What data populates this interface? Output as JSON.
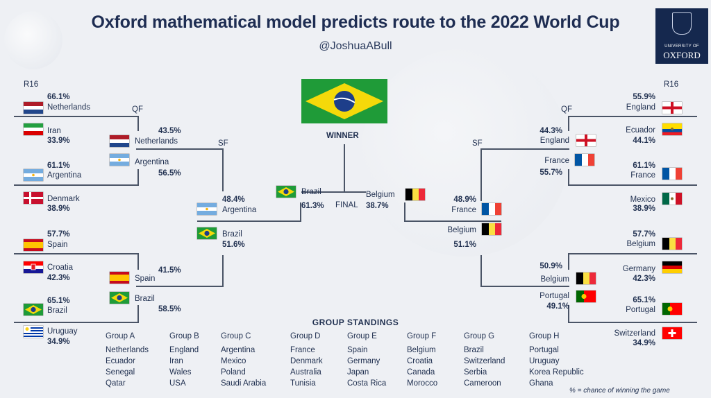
{
  "header": {
    "title": "Oxford mathematical model predicts route to the 2022 World Cup",
    "handle": "@JoshuaABull",
    "logo_small": "UNIVERSITY OF",
    "logo_big": "OXFORD"
  },
  "stages": {
    "left_r16": "R16",
    "left_qf": "QF",
    "left_sf": "SF",
    "right_r16": "R16",
    "right_qf": "QF",
    "right_sf": "SF",
    "winner": "WINNER",
    "final": "FINAL"
  },
  "left": {
    "r16": [
      {
        "team": "Netherlands",
        "pct": "66.1%"
      },
      {
        "team": "Iran",
        "pct": "33.9%"
      },
      {
        "team": "Argentina",
        "pct": "61.1%"
      },
      {
        "team": "Denmark",
        "pct": "38.9%"
      },
      {
        "team": "Spain",
        "pct": "57.7%"
      },
      {
        "team": "Croatia",
        "pct": "42.3%"
      },
      {
        "team": "Brazil",
        "pct": "65.1%"
      },
      {
        "team": "Uruguay",
        "pct": "34.9%"
      }
    ],
    "qf": [
      {
        "team": "Netherlands",
        "pct": "43.5%"
      },
      {
        "team": "Argentina",
        "pct": "56.5%"
      },
      {
        "team": "Spain",
        "pct": "41.5%"
      },
      {
        "team": "Brazil",
        "pct": "58.5%"
      }
    ],
    "sf": [
      {
        "team": "Argentina",
        "pct": "48.4%"
      },
      {
        "team": "Brazil",
        "pct": "51.6%"
      }
    ]
  },
  "right": {
    "r16": [
      {
        "team": "England",
        "pct": "55.9%"
      },
      {
        "team": "Ecuador",
        "pct": "44.1%"
      },
      {
        "team": "France",
        "pct": "61.1%"
      },
      {
        "team": "Mexico",
        "pct": "38.9%"
      },
      {
        "team": "Belgium",
        "pct": "57.7%"
      },
      {
        "team": "Germany",
        "pct": "42.3%"
      },
      {
        "team": "Portugal",
        "pct": "65.1%"
      },
      {
        "team": "Switzerland",
        "pct": "34.9%"
      }
    ],
    "qf": [
      {
        "team": "England",
        "pct": "44.3%"
      },
      {
        "team": "France",
        "pct": "55.7%"
      },
      {
        "team": "Belgium",
        "pct": "50.9%"
      },
      {
        "team": "Portugal",
        "pct": "49.1%"
      }
    ],
    "sf": [
      {
        "team": "France",
        "pct": "48.9%"
      },
      {
        "team": "Belgium",
        "pct": "51.1%"
      }
    ]
  },
  "final": [
    {
      "team": "Brazil",
      "pct": "61.3%"
    },
    {
      "team": "Belgium",
      "pct": "38.7%"
    }
  ],
  "group_standings": {
    "title": "GROUP STANDINGS",
    "groups": [
      {
        "name": "Group A",
        "teams": [
          "Netherlands",
          "Ecuador",
          "Senegal",
          "Qatar"
        ]
      },
      {
        "name": "Group B",
        "teams": [
          "England",
          "Iran",
          "Wales",
          "USA"
        ]
      },
      {
        "name": "Group C",
        "teams": [
          "Argentina",
          "Mexico",
          "Poland",
          "Saudi Arabia"
        ]
      },
      {
        "name": "Group D",
        "teams": [
          "France",
          "Denmark",
          "Australia",
          "Tunisia"
        ]
      },
      {
        "name": "Group E",
        "teams": [
          "Spain",
          "Germany",
          "Japan",
          "Costa Rica"
        ]
      },
      {
        "name": "Group F",
        "teams": [
          "Belgium",
          "Croatia",
          "Canada",
          "Morocco"
        ]
      },
      {
        "name": "Group G",
        "teams": [
          "Brazil",
          "Switzerland",
          "Serbia",
          "Cameroon"
        ]
      },
      {
        "name": "Group H",
        "teams": [
          "Portugal",
          "Uruguay",
          "Korea Republic",
          "Ghana"
        ]
      }
    ]
  },
  "footnote": "% = chance of winning the game",
  "colors": {
    "navy": "#1e2d52",
    "bracket_line": "#4a5466",
    "background": "#eef0f4"
  }
}
